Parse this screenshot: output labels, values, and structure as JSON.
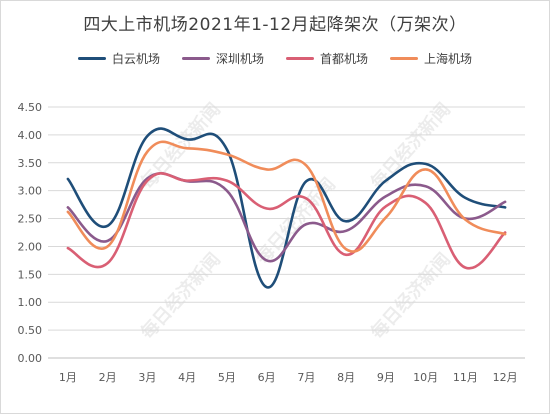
{
  "chart_data": {
    "type": "line",
    "title": "四大上市机场2021年1-12月起降架次（万架次）",
    "categories": [
      "1月",
      "2月",
      "3月",
      "4月",
      "5月",
      "6月",
      "7月",
      "8月",
      "9月",
      "10月",
      "11月",
      "12月"
    ],
    "ylim": [
      0,
      4.5
    ],
    "yticks": [
      "0.00",
      "0.50",
      "1.00",
      "1.50",
      "2.00",
      "2.50",
      "3.00",
      "3.50",
      "4.00",
      "4.50"
    ],
    "grid": true,
    "legend_position": "top",
    "series": [
      {
        "name": "白云机场",
        "color": "#1f4e79",
        "values": [
          3.21,
          2.37,
          3.98,
          3.92,
          3.74,
          1.27,
          3.17,
          2.45,
          3.18,
          3.48,
          2.87,
          2.7
        ]
      },
      {
        "name": "深圳机场",
        "color": "#8b5a8c",
        "values": [
          2.7,
          2.1,
          3.22,
          3.17,
          3.0,
          1.75,
          2.4,
          2.28,
          2.9,
          3.08,
          2.5,
          2.8
        ]
      },
      {
        "name": "首都机场",
        "color": "#d95f74",
        "values": [
          1.97,
          1.7,
          3.18,
          3.18,
          3.18,
          2.68,
          2.86,
          1.85,
          2.72,
          2.78,
          1.62,
          2.25
        ]
      },
      {
        "name": "上海机场",
        "color": "#f08c5a",
        "values": [
          2.62,
          2.0,
          3.7,
          3.76,
          3.65,
          3.38,
          3.45,
          1.95,
          2.52,
          3.38,
          2.48,
          2.22
        ]
      }
    ]
  },
  "watermark": "每日经济新闻"
}
